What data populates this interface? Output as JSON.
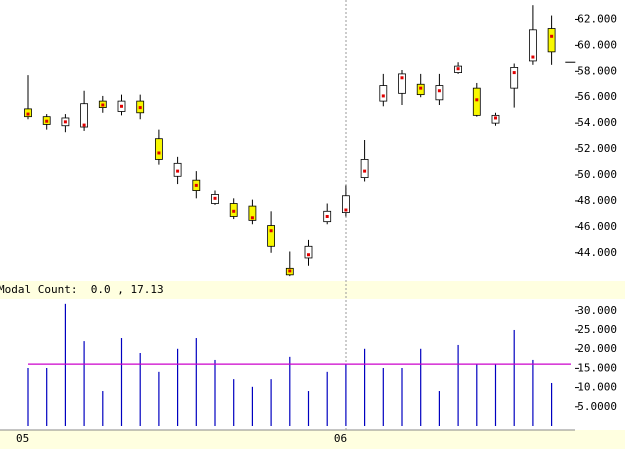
{
  "chart_data": [
    {
      "type": "candlestick",
      "ylim": [
        41.9,
        63.5
      ],
      "yticks": [
        {
          "value": 44,
          "label": "44.000"
        },
        {
          "value": 46,
          "label": "46.000"
        },
        {
          "value": 48,
          "label": "48.000"
        },
        {
          "value": 50,
          "label": "50.000"
        },
        {
          "value": 52,
          "label": "52.000"
        },
        {
          "value": 54,
          "label": "54.000"
        },
        {
          "value": 56,
          "label": "56.000"
        },
        {
          "value": 58,
          "label": "58.000"
        },
        {
          "value": 60,
          "label": "60.000"
        },
        {
          "value": 62,
          "label": "62.000"
        }
      ],
      "up_color": "#ffffff",
      "down_color": "#f8f800",
      "marker_color": "#e00000",
      "open": [
        55.1,
        54.5,
        53.8,
        53.7,
        55.7,
        54.9,
        55.7,
        52.8,
        49.9,
        49.6,
        47.8,
        47.8,
        47.6,
        46.1,
        42.8,
        43.6,
        46.4,
        47.1,
        49.8,
        55.7,
        56.3,
        57.0,
        55.8,
        57.9,
        56.7,
        54.0,
        56.7,
        58.8,
        61.3,
        58.7
      ],
      "high": [
        57.7,
        54.7,
        54.7,
        56.5,
        56.1,
        56.2,
        56.2,
        53.5,
        51.4,
        50.3,
        48.8,
        48.2,
        48.1,
        47.2,
        44.1,
        45.0,
        47.8,
        49.2,
        52.7,
        57.8,
        58.1,
        57.8,
        57.8,
        58.7,
        57.1,
        54.8,
        58.6,
        63.1,
        62.3,
        58.7
      ],
      "low": [
        54.3,
        53.5,
        53.3,
        53.4,
        54.8,
        54.6,
        54.3,
        50.8,
        49.3,
        48.2,
        47.7,
        46.6,
        46.2,
        44.0,
        42.2,
        43.0,
        46.2,
        46.8,
        49.5,
        55.3,
        55.4,
        56.0,
        55.4,
        57.8,
        54.5,
        53.8,
        55.2,
        58.5,
        58.5,
        58.7
      ],
      "close": [
        54.5,
        53.9,
        54.4,
        55.5,
        55.2,
        55.7,
        54.8,
        51.2,
        50.9,
        48.8,
        48.5,
        46.8,
        46.5,
        44.5,
        42.3,
        44.5,
        47.2,
        48.4,
        51.2,
        56.9,
        57.8,
        56.2,
        56.9,
        58.4,
        54.6,
        54.6,
        58.3,
        61.2,
        59.5,
        58.7
      ],
      "modal": [
        54.7,
        54.15,
        54.1,
        53.85,
        55.4,
        55.3,
        55.2,
        51.7,
        50.3,
        49.2,
        48.2,
        47.2,
        46.7,
        45.7,
        42.6,
        43.85,
        46.8,
        47.3,
        50.3,
        56.1,
        57.5,
        56.7,
        56.5,
        58.2,
        55.8,
        54.4,
        57.9,
        59.1,
        60.7,
        null
      ]
    },
    {
      "type": "bar",
      "title": "Modal Count:  0.0 , 17.13",
      "categories": [
        "05",
        null,
        null,
        null,
        null,
        null,
        null,
        null,
        null,
        null,
        null,
        null,
        null,
        null,
        null,
        null,
        null,
        "06",
        null,
        null,
        null,
        null,
        null,
        null,
        null,
        null,
        null,
        null,
        null,
        null
      ],
      "values": [
        15.1,
        15.1,
        31.8,
        22.1,
        9.1,
        22.9,
        19,
        14.1,
        20.1,
        22.9,
        17.2,
        12.2,
        10.2,
        12.2,
        18,
        9.1,
        14.1,
        16.1,
        20.1,
        15.1,
        15.1,
        20.1,
        9.1,
        21.1,
        16.1,
        16.1,
        25,
        17.2,
        11.2,
        0
      ],
      "color": "#0000c0",
      "reference_line": {
        "value": 16.1,
        "color": "#cc00cc"
      },
      "ylim": [
        0,
        32.8
      ],
      "yticks": [
        {
          "value": 5,
          "label": "5.0000"
        },
        {
          "value": 10,
          "label": "10.000"
        },
        {
          "value": 15,
          "label": "15.000"
        },
        {
          "value": 20,
          "label": "20.000"
        },
        {
          "value": 25,
          "label": "25.000"
        },
        {
          "value": 30,
          "label": "30.000"
        }
      ]
    }
  ]
}
